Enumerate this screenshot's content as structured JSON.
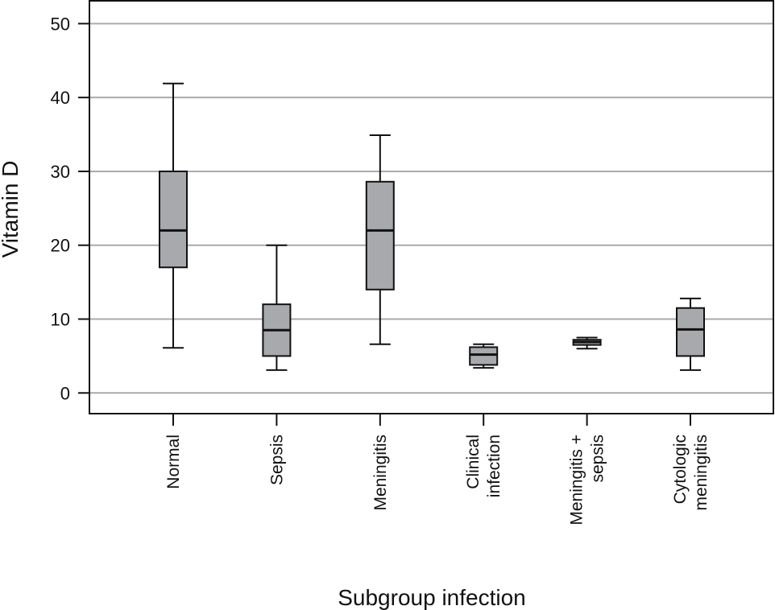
{
  "chart_data": {
    "type": "box",
    "title": "",
    "xlabel": "Subgroup infection",
    "ylabel": "Vitamin D",
    "ylim": [
      -2.8,
      53.2
    ],
    "yticks": [
      0,
      10,
      20,
      30,
      40,
      50
    ],
    "ytick_labels": [
      "0",
      "10",
      "20",
      "30",
      "40",
      "50"
    ],
    "grid": "horizontal",
    "categories": [
      {
        "lines": [
          "Normal"
        ]
      },
      {
        "lines": [
          "Sepsis"
        ]
      },
      {
        "lines": [
          "Meningitis"
        ]
      },
      {
        "lines": [
          "Clinical",
          "infection"
        ]
      },
      {
        "lines": [
          "Meningitis +",
          "sepsis"
        ]
      },
      {
        "lines": [
          "Cytologic",
          "meningitis"
        ]
      }
    ],
    "boxes": [
      {
        "whisker_low": 6.1,
        "q1": 17.0,
        "median": 22.0,
        "q3": 30.0,
        "whisker_high": 41.9
      },
      {
        "whisker_low": 3.1,
        "q1": 5.0,
        "median": 8.5,
        "q3": 12.0,
        "whisker_high": 20.0
      },
      {
        "whisker_low": 6.6,
        "q1": 14.0,
        "median": 22.0,
        "q3": 28.6,
        "whisker_high": 34.9
      },
      {
        "whisker_low": 3.4,
        "q1": 3.8,
        "median": 5.2,
        "q3": 6.2,
        "whisker_high": 6.6
      },
      {
        "whisker_low": 6.0,
        "q1": 6.5,
        "median": 6.9,
        "q3": 7.2,
        "whisker_high": 7.5
      },
      {
        "whisker_low": 3.1,
        "q1": 5.0,
        "median": 8.6,
        "q3": 11.5,
        "whisker_high": 12.8
      }
    ],
    "colors": {
      "box_fill": "#a7a9ac",
      "stroke": "#111111",
      "grid": "#aaaaaa"
    }
  }
}
